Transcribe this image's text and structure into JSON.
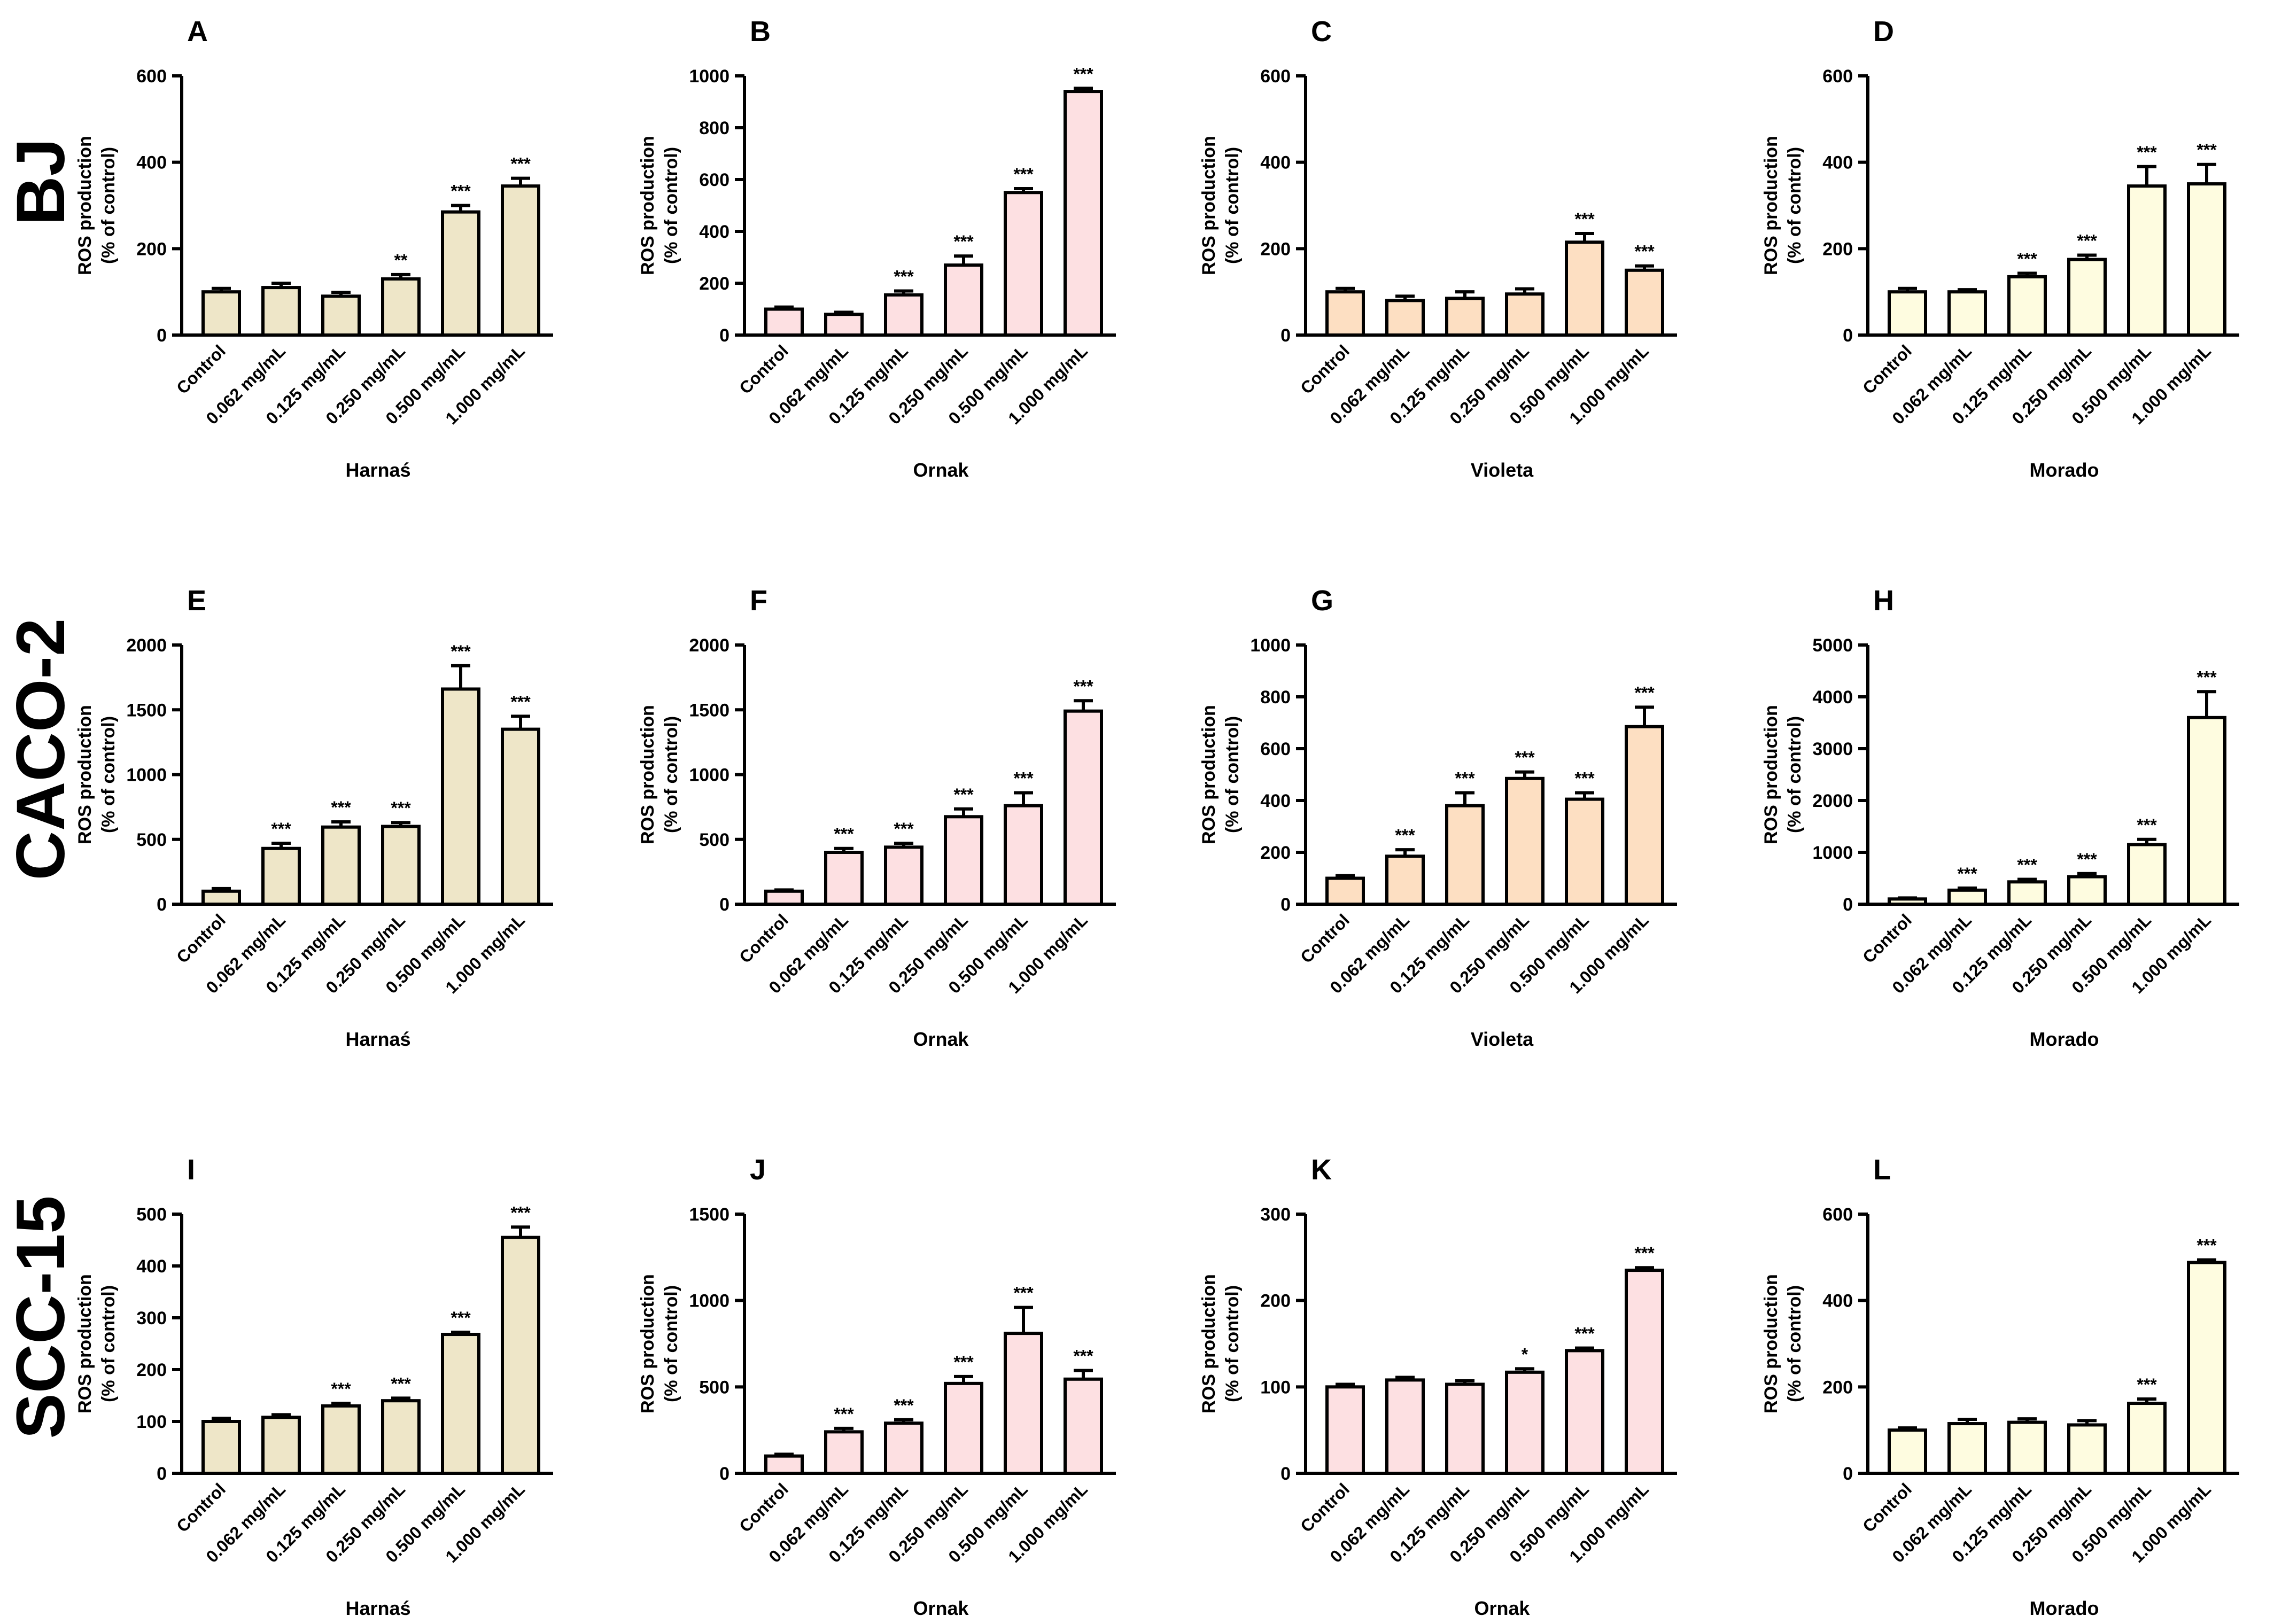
{
  "colors": {
    "Harnaś": "#EEE6C8",
    "Ornak": "#FDE0E2",
    "Violeta": "#FDDFC2",
    "Morado": "#FEFCE0",
    "axis": "#000000"
  },
  "rows": [
    "BJ",
    "CACO-2",
    "SCC-15"
  ],
  "chart_data": [
    {
      "panel": "A",
      "row": "BJ",
      "type": "bar",
      "categories": [
        "Control",
        "0.062 mg/mL",
        "0.125 mg/mL",
        "0.250 mg/mL",
        "0.500 mg/mL",
        "1.000 mg/mL"
      ],
      "values": [
        100,
        110,
        90,
        130,
        285,
        345
      ],
      "errors": [
        8,
        10,
        9,
        10,
        15,
        18
      ],
      "significance": [
        "",
        "",
        "",
        "**",
        "***",
        "***"
      ],
      "xlabel": "Harnaś",
      "ylabel": [
        "ROS production",
        "(% of control)"
      ],
      "ylim": [
        0,
        600
      ],
      "yticks": [
        0,
        200,
        400,
        600
      ],
      "grid": false
    },
    {
      "panel": "B",
      "row": "BJ",
      "type": "bar",
      "categories": [
        "Control",
        "0.062 mg/mL",
        "0.125 mg/mL",
        "0.250 mg/mL",
        "0.500 mg/mL",
        "1.000 mg/mL"
      ],
      "values": [
        100,
        80,
        155,
        270,
        550,
        940
      ],
      "errors": [
        8,
        8,
        15,
        35,
        15,
        12
      ],
      "significance": [
        "",
        "",
        "***",
        "***",
        "***",
        "***"
      ],
      "xlabel": "Ornak",
      "ylabel": [
        "ROS production",
        "(% of control)"
      ],
      "ylim": [
        0,
        1000
      ],
      "yticks": [
        0,
        200,
        400,
        600,
        800,
        1000
      ],
      "grid": false
    },
    {
      "panel": "C",
      "row": "BJ",
      "type": "bar",
      "categories": [
        "Control",
        "0.062 mg/mL",
        "0.125 mg/mL",
        "0.250 mg/mL",
        "0.500 mg/mL",
        "1.000 mg/mL"
      ],
      "values": [
        100,
        80,
        85,
        95,
        215,
        150
      ],
      "errors": [
        8,
        10,
        15,
        12,
        20,
        10
      ],
      "significance": [
        "",
        "",
        "",
        "",
        "***",
        "***"
      ],
      "xlabel": "Violeta",
      "ylabel": [
        "ROS production",
        "(% of control)"
      ],
      "ylim": [
        0,
        600
      ],
      "yticks": [
        0,
        200,
        400,
        600
      ],
      "grid": false
    },
    {
      "panel": "D",
      "row": "BJ",
      "type": "bar",
      "categories": [
        "Control",
        "0.062 mg/mL",
        "0.125 mg/mL",
        "0.250 mg/mL",
        "0.500 mg/mL",
        "1.000 mg/mL"
      ],
      "values": [
        100,
        100,
        135,
        175,
        345,
        350
      ],
      "errors": [
        8,
        5,
        8,
        10,
        45,
        45
      ],
      "significance": [
        "",
        "",
        "***",
        "***",
        "***",
        "***"
      ],
      "xlabel": "Morado",
      "ylabel": [
        "ROS production",
        "(% of control)"
      ],
      "ylim": [
        0,
        600
      ],
      "yticks": [
        0,
        200,
        400,
        600
      ],
      "grid": false
    },
    {
      "panel": "E",
      "row": "CACO-2",
      "type": "bar",
      "categories": [
        "Control",
        "0.062 mg/mL",
        "0.125 mg/mL",
        "0.250 mg/mL",
        "0.500 mg/mL",
        "1.000 mg/mL"
      ],
      "values": [
        100,
        430,
        595,
        600,
        1660,
        1350
      ],
      "errors": [
        20,
        40,
        40,
        30,
        180,
        100
      ],
      "significance": [
        "",
        "***",
        "***",
        "***",
        "***",
        "***"
      ],
      "xlabel": "Harnaś",
      "ylabel": [
        "ROS production",
        "(% of control)"
      ],
      "ylim": [
        0,
        2000
      ],
      "yticks": [
        0,
        500,
        1000,
        1500,
        2000
      ],
      "grid": false
    },
    {
      "panel": "F",
      "row": "CACO-2",
      "type": "bar",
      "categories": [
        "Control",
        "0.062 mg/mL",
        "0.125 mg/mL",
        "0.250 mg/mL",
        "0.500 mg/mL",
        "1.000 mg/mL"
      ],
      "values": [
        100,
        400,
        440,
        675,
        760,
        1490
      ],
      "errors": [
        10,
        30,
        30,
        60,
        100,
        80
      ],
      "significance": [
        "",
        "***",
        "***",
        "***",
        "***",
        "***"
      ],
      "xlabel": "Ornak",
      "ylabel": [
        "ROS production",
        "(% of control)"
      ],
      "ylim": [
        0,
        2000
      ],
      "yticks": [
        0,
        500,
        1000,
        1500,
        2000
      ],
      "grid": false
    },
    {
      "panel": "G",
      "row": "CACO-2",
      "type": "bar",
      "categories": [
        "Control",
        "0.062 mg/mL",
        "0.125 mg/mL",
        "0.250 mg/mL",
        "0.500 mg/mL",
        "1.000 mg/mL"
      ],
      "values": [
        100,
        185,
        380,
        485,
        405,
        685
      ],
      "errors": [
        10,
        25,
        50,
        25,
        25,
        75
      ],
      "significance": [
        "",
        "***",
        "***",
        "***",
        "***",
        "***"
      ],
      "xlabel": "Violeta",
      "ylabel": [
        "ROS production",
        "(% of control)"
      ],
      "ylim": [
        0,
        1000
      ],
      "yticks": [
        0,
        200,
        400,
        600,
        800,
        1000
      ],
      "grid": false
    },
    {
      "panel": "H",
      "row": "CACO-2",
      "type": "bar",
      "categories": [
        "Control",
        "0.062 mg/mL",
        "0.125 mg/mL",
        "0.250 mg/mL",
        "0.500 mg/mL",
        "1.000 mg/mL"
      ],
      "values": [
        100,
        270,
        430,
        530,
        1150,
        3600
      ],
      "errors": [
        20,
        40,
        50,
        60,
        100,
        500
      ],
      "significance": [
        "",
        "***",
        "***",
        "***",
        "***",
        "***"
      ],
      "xlabel": "Morado",
      "ylabel": [
        "ROS production",
        "(% of control)"
      ],
      "ylim": [
        0,
        5000
      ],
      "yticks": [
        0,
        1000,
        2000,
        3000,
        4000,
        5000
      ],
      "grid": false
    },
    {
      "panel": "I",
      "row": "SCC-15",
      "type": "bar",
      "categories": [
        "Control",
        "0.062 mg/mL",
        "0.125 mg/mL",
        "0.250 mg/mL",
        "0.500 mg/mL",
        "1.000 mg/mL"
      ],
      "values": [
        100,
        108,
        130,
        140,
        268,
        455
      ],
      "errors": [
        6,
        5,
        5,
        5,
        4,
        20
      ],
      "significance": [
        "",
        "",
        "***",
        "***",
        "***",
        "***"
      ],
      "xlabel": "Harnaś",
      "ylabel": [
        "ROS production",
        "(% of control)"
      ],
      "ylim": [
        0,
        500
      ],
      "yticks": [
        0,
        100,
        200,
        300,
        400,
        500
      ],
      "grid": false
    },
    {
      "panel": "J",
      "row": "SCC-15",
      "type": "bar",
      "categories": [
        "Control",
        "0.062 mg/mL",
        "0.125 mg/mL",
        "0.250 mg/mL",
        "0.500 mg/mL",
        "1.000 mg/mL"
      ],
      "values": [
        100,
        240,
        290,
        520,
        810,
        545
      ],
      "errors": [
        10,
        20,
        20,
        40,
        150,
        50
      ],
      "significance": [
        "",
        "***",
        "***",
        "***",
        "***",
        "***"
      ],
      "xlabel": "Ornak",
      "ylabel": [
        "ROS production",
        "(% of control)"
      ],
      "ylim": [
        0,
        1500
      ],
      "yticks": [
        0,
        500,
        1000,
        1500
      ],
      "grid": false
    },
    {
      "panel": "K",
      "row": "SCC-15",
      "type": "bar",
      "categories": [
        "Control",
        "0.062 mg/mL",
        "0.125 mg/mL",
        "0.250 mg/mL",
        "0.500 mg/mL",
        "1.000 mg/mL"
      ],
      "values": [
        100,
        108,
        103,
        117,
        142,
        235
      ],
      "errors": [
        3,
        3,
        4,
        4,
        3,
        3
      ],
      "significance": [
        "",
        "",
        "",
        "*",
        "***",
        "***"
      ],
      "xlabel": "Ornak",
      "ylabel": [
        "ROS production",
        "(% of control)"
      ],
      "ylim": [
        0,
        300
      ],
      "yticks": [
        0,
        100,
        200,
        300
      ],
      "grid": false
    },
    {
      "panel": "L",
      "row": "SCC-15",
      "type": "bar",
      "categories": [
        "Control",
        "0.062 mg/mL",
        "0.125 mg/mL",
        "0.250 mg/mL",
        "0.500 mg/mL",
        "1.000 mg/mL"
      ],
      "values": [
        100,
        115,
        118,
        112,
        162,
        488
      ],
      "errors": [
        5,
        10,
        8,
        10,
        10,
        6
      ],
      "significance": [
        "",
        "",
        "",
        "",
        "***",
        "***"
      ],
      "xlabel": "Morado",
      "ylabel": [
        "ROS production",
        "(% of control)"
      ],
      "ylim": [
        0,
        600
      ],
      "yticks": [
        0,
        200,
        400,
        600
      ],
      "grid": false
    }
  ]
}
